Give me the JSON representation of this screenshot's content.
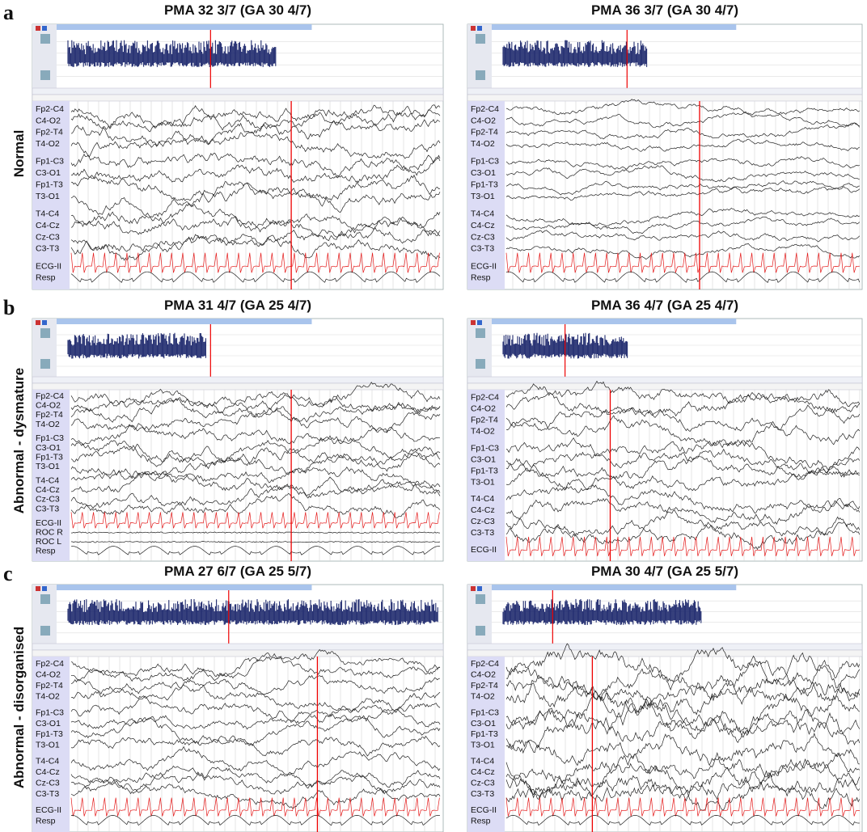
{
  "panels": [
    {
      "letter": "a",
      "row_label": "Normal",
      "left": {
        "title": "PMA 32 3/7 (GA 30 4/7)",
        "channels": [
          "Fp2-C4",
          "C4-O2",
          "Fp2-T4",
          "T4-O2",
          "Fp1-C3",
          "C3-O1",
          "Fp1-T3",
          "T3-O1",
          "T4-C4",
          "C4-Cz",
          "Cz-C3",
          "C3-T3",
          "ECG-II",
          "Resp"
        ]
      },
      "right": {
        "title": "PMA 36 3/7 (GA 30 4/7)",
        "channels": [
          "Fp2-C4",
          "C4-O2",
          "Fp2-T4",
          "T4-O2",
          "Fp1-C3",
          "C3-O1",
          "Fp1-T3",
          "T3-O1",
          "T4-C4",
          "C4-Cz",
          "Cz-C3",
          "C3-T3",
          "ECG-II",
          "Resp"
        ]
      }
    },
    {
      "letter": "b",
      "row_label": "Abnormal - dysmature",
      "left": {
        "title": "PMA 31 4/7 (GA 25 4/7)",
        "channels": [
          "Fp2-C4",
          "C4-O2",
          "Fp2-T4",
          "T4-O2",
          "Fp1-C3",
          "C3-O1",
          "Fp1-T3",
          "T3-O1",
          "T4-C4",
          "C4-Cz",
          "Cz-C3",
          "C3-T3",
          "ECG-II",
          "ROC R",
          "ROC L",
          "Resp"
        ]
      },
      "right": {
        "title": "PMA 36 4/7 (GA 25 4/7)",
        "channels": [
          "Fp2-C4",
          "C4-O2",
          "Fp2-T4",
          "T4-O2",
          "Fp1-C3",
          "C3-O1",
          "Fp1-T3",
          "T3-O1",
          "T4-C4",
          "C4-Cz",
          "Cz-C3",
          "C3-T3",
          "ECG-II"
        ]
      }
    },
    {
      "letter": "c",
      "row_label": "Abnormal - disorganised",
      "left": {
        "title": "PMA 27 6/7 (GA 25 5/7)",
        "channels": [
          "Fp2-C4",
          "C4-O2",
          "Fp2-T4",
          "T4-O2",
          "Fp1-C3",
          "C3-O1",
          "Fp1-T3",
          "T3-O1",
          "T4-C4",
          "C4-Cz",
          "Cz-C3",
          "C3-T3",
          "ECG-II",
          "Resp"
        ]
      },
      "right": {
        "title": "PMA 30 4/7 (GA 25 5/7)",
        "channels": [
          "Fp2-C4",
          "C4-O2",
          "Fp2-T4",
          "T4-O2",
          "Fp1-C3",
          "C3-O1",
          "Fp1-T3",
          "T3-O1",
          "T4-C4",
          "C4-Cz",
          "Cz-C3",
          "C3-T3",
          "ECG-II",
          "Resp"
        ]
      }
    }
  ]
}
